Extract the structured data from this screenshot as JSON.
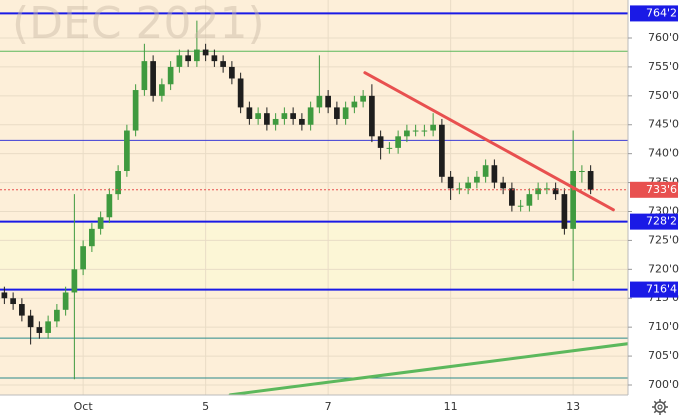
{
  "chart_data": {
    "type": "candlestick",
    "title": "(DEC 2021)",
    "categories": [
      null,
      null,
      null,
      null,
      null,
      null,
      null,
      null,
      null,
      "Oct",
      null,
      null,
      null,
      null,
      null,
      null,
      null,
      null,
      null,
      null,
      null,
      null,
      null,
      "5",
      null,
      null,
      null,
      null,
      null,
      null,
      null,
      null,
      null,
      null,
      null,
      null,
      null,
      "7",
      null,
      null,
      null,
      null,
      null,
      null,
      null,
      null,
      null,
      null,
      null,
      null,
      null,
      "11",
      null,
      null,
      null,
      null,
      null,
      null,
      null,
      null,
      null,
      null,
      null,
      null,
      null,
      "13",
      null,
      null
    ],
    "open": [
      716,
      715,
      714,
      712,
      710,
      709,
      711,
      713,
      716,
      720,
      724,
      727,
      729,
      733,
      737,
      744,
      751,
      756,
      750,
      752,
      755,
      757,
      756,
      758,
      757,
      756,
      755,
      753,
      748,
      746,
      747,
      745,
      746,
      747,
      746,
      745,
      748,
      750,
      748,
      746,
      748,
      749,
      750,
      743,
      741,
      741,
      743,
      744,
      744,
      744,
      745,
      736,
      734,
      734,
      735,
      736,
      738,
      735,
      734,
      731,
      731,
      733,
      734,
      734,
      733,
      727,
      737,
      737
    ],
    "high": [
      717,
      716,
      715,
      713,
      711,
      712,
      714,
      717,
      733,
      725,
      728,
      730,
      734,
      738,
      745,
      752,
      759,
      757,
      753,
      756,
      758,
      758,
      763,
      759,
      758,
      757,
      756,
      754,
      749,
      748,
      748,
      747,
      748,
      748,
      747,
      749,
      757,
      751,
      749,
      749,
      750,
      751,
      752,
      744,
      742,
      744,
      745,
      745,
      745,
      747,
      746,
      737,
      735,
      736,
      737,
      739,
      739,
      736,
      735,
      732,
      734,
      735,
      735,
      735,
      734,
      744,
      738,
      738
    ],
    "low": [
      714,
      713,
      711,
      707,
      708,
      708,
      710,
      712,
      701,
      719,
      723,
      726,
      728,
      732,
      736,
      743,
      750,
      749,
      749,
      751,
      754,
      755,
      755,
      756,
      755,
      754,
      752,
      747,
      745,
      745,
      744,
      744,
      745,
      745,
      744,
      744,
      747,
      747,
      745,
      745,
      747,
      748,
      742,
      739,
      740,
      740,
      742,
      743,
      743,
      743,
      735,
      732,
      733,
      733,
      734,
      735,
      734,
      733,
      730,
      730,
      730,
      732,
      733,
      732,
      726,
      718,
      735,
      733
    ],
    "close": [
      715,
      714,
      712,
      710,
      709,
      711,
      713,
      716,
      720,
      724,
      727,
      729,
      733,
      737,
      744,
      751,
      756,
      750,
      752,
      755,
      757,
      756,
      758,
      757,
      756,
      755,
      753,
      748,
      746,
      747,
      745,
      746,
      747,
      746,
      745,
      748,
      750,
      748,
      746,
      748,
      749,
      750,
      743,
      741,
      741,
      743,
      744,
      744,
      744,
      745,
      736,
      734,
      734,
      735,
      736,
      738,
      735,
      734,
      731,
      731,
      733,
      734,
      734,
      733,
      727,
      737,
      737,
      733.75
    ],
    "up_color": "#3f9a3f",
    "down_color": "#1e1e1e",
    "xlim": [
      -0.5,
      71.27
    ],
    "ylim": [
      698.27,
      766.57
    ],
    "yticks": [
      {
        "value": 700,
        "label": "700'0"
      },
      {
        "value": 705,
        "label": "705'0"
      },
      {
        "value": 710,
        "label": "710'0"
      },
      {
        "value": 715,
        "label": "715'0"
      },
      {
        "value": 720,
        "label": "720'0"
      },
      {
        "value": 725,
        "label": "725'0"
      },
      {
        "value": 730,
        "label": "730'0"
      },
      {
        "value": 735,
        "label": "735'0"
      },
      {
        "value": 740,
        "label": "740'0"
      },
      {
        "value": 745,
        "label": "745'0"
      },
      {
        "value": 750,
        "label": "750'0"
      },
      {
        "value": 755,
        "label": "755'0"
      },
      {
        "value": 760,
        "label": "760'0"
      }
    ],
    "bands": [
      {
        "from": 728.25,
        "to": 766.57,
        "color": "#fdefd9"
      },
      {
        "from": 716.5,
        "to": 728.25,
        "color": "#fcf6d6"
      },
      {
        "from": 698.27,
        "to": 716.5,
        "color": "#fdefd9"
      }
    ],
    "levels": [
      {
        "value": 764.25,
        "label": "764'2",
        "color": "#1a1ae6",
        "width": 2
      },
      {
        "value": 757.7,
        "color": "#5cb85c",
        "width": 1
      },
      {
        "value": 742.3,
        "color": "#3b3bd6",
        "width": 1
      },
      {
        "value": 728.25,
        "label": "728'2",
        "color": "#1a1ae6",
        "width": 2
      },
      {
        "value": 716.5,
        "label": "716'4",
        "color": "#1a1ae6",
        "width": 2
      },
      {
        "value": 708.1,
        "color": "#2a8a8a",
        "width": 1
      },
      {
        "value": 701.2,
        "color": "#2a8a8a",
        "width": 1
      }
    ],
    "last_price": {
      "value": 733.75,
      "label": "733'6",
      "color": "#e8504f"
    },
    "trendlines": [
      {
        "x": [
          41.2,
          69.6
        ],
        "y": [
          754,
          730.3
        ],
        "color": "#e8504f",
        "width": 3
      },
      {
        "x": [
          25.8,
          72.6
        ],
        "y": [
          698.3,
          707.4
        ],
        "color": "#5cb85c",
        "width": 3
      }
    ]
  }
}
